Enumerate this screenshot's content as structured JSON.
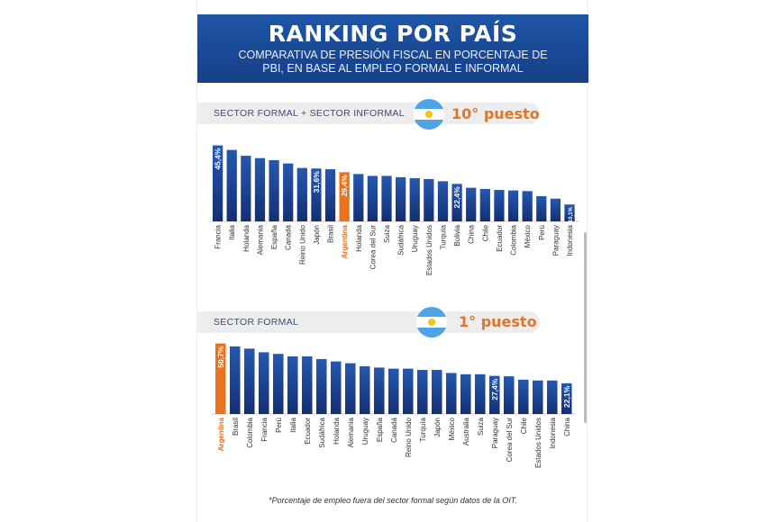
{
  "header": {
    "title": "RANKING POR PAÍS",
    "subtitle": "COMPARATIVA DE PRESIÓN FISCAL EN PORCENTAJE DE PBI, EN BASE AL EMPLEO FORMAL E INFORMAL"
  },
  "colors": {
    "bar": "#1c4a9c",
    "highlight": "#e9721f",
    "header": "#1e56a8"
  },
  "footnote": "*Porcentaje de empleo fuera del sector formal según datos de la OIT.",
  "chart_data": [
    {
      "type": "bar",
      "title": "SECTOR FORMAL + SECTOR INFORMAL",
      "rank": "10° puesto",
      "highlight": "Argentina",
      "categories": [
        "Francia",
        "Italia",
        "Holanda",
        "Alemania",
        "España",
        "Canadá",
        "Reino Unido",
        "Japón",
        "Brasil",
        "Argentina",
        "Holanda",
        "Corea del Sur",
        "Suiza",
        "Sudáfrica",
        "Uruguay",
        "Estados Unidos",
        "Turquía",
        "Bolivia",
        "China",
        "Chile",
        "Ecuador",
        "Colombia",
        "México",
        "Perú",
        "Paraguay",
        "Indonesia"
      ],
      "values": [
        45.4,
        42.7,
        39.2,
        37.8,
        36.6,
        34.6,
        31.9,
        31.6,
        31.2,
        29.4,
        28.3,
        27.2,
        27.2,
        26.4,
        25.8,
        25.3,
        24.0,
        22.4,
        20.1,
        19.4,
        18.8,
        18.5,
        18.1,
        15.1,
        13.6,
        10.1
      ],
      "data_labels": {
        "0": "45,4%",
        "7": "31,6%",
        "9": "29,4%",
        "17": "22,4%",
        "25": "10,1%"
      },
      "ylim": [
        0,
        50
      ]
    },
    {
      "type": "bar",
      "title": "SECTOR FORMAL",
      "rank": "1° puesto",
      "highlight": "Argentina",
      "categories": [
        "Argentina",
        "Brasil",
        "Colombia",
        "Francia",
        "Perú",
        "Italia",
        "Ecuador",
        "Sudáfrica",
        "Holanda",
        "Alemania",
        "Uruguay",
        "España",
        "Canadá",
        "Reino Unido",
        "Turquía",
        "Japón",
        "México",
        "Australia",
        "Suiza",
        "Paraguay",
        "Corea del Sur",
        "Chile",
        "Estados Unidos",
        "Indonesia",
        "China"
      ],
      "values": [
        50.7,
        48.6,
        47.0,
        44.4,
        43.2,
        41.4,
        41.4,
        39.5,
        37.8,
        36.5,
        34.3,
        33.4,
        32.6,
        32.6,
        31.7,
        31.7,
        29.5,
        28.6,
        28.6,
        27.4,
        27.1,
        24.7,
        24.1,
        24.1,
        22.1
      ],
      "data_labels": {
        "0": "50,7%",
        "19": "27,4%",
        "24": "22,1%"
      },
      "ylim": [
        0,
        55
      ]
    }
  ]
}
